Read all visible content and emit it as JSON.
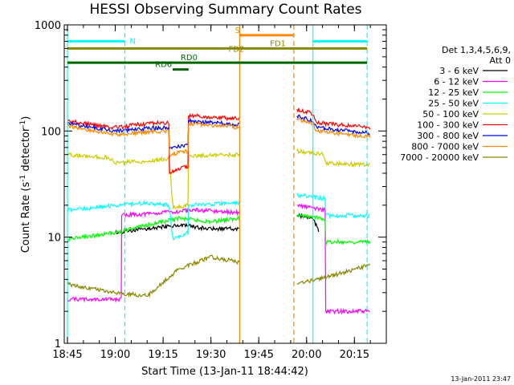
{
  "chart_data": {
    "type": "line",
    "title": "HESSI Observing Summary Count Rates",
    "xlabel": "Start Time (13-Jan-11 18:44:42)",
    "ylabel_main": "Count Rate (s",
    "ylabel_sup1": "-1",
    "ylabel_mid": " detector",
    "ylabel_sup2": "-1",
    "ylabel_end": ")",
    "y_scale": "log",
    "ylim": [
      1,
      1000
    ],
    "xlim": [
      "18:44",
      "20:25"
    ],
    "x_ticks": [
      {
        "t": "18:45",
        "label": "18:45"
      },
      {
        "t": "19:00",
        "label": "19:00"
      },
      {
        "t": "19:15",
        "label": "19:15"
      },
      {
        "t": "19:30",
        "label": "19:30"
      },
      {
        "t": "19:45",
        "label": "19:45"
      },
      {
        "t": "20:00",
        "label": "20:00"
      },
      {
        "t": "20:15",
        "label": "20:15"
      }
    ],
    "y_ticks": [
      {
        "v": 1,
        "label": "1"
      },
      {
        "v": 10,
        "label": "10"
      },
      {
        "v": 100,
        "label": "100"
      },
      {
        "v": 1000,
        "label": "1000"
      }
    ],
    "legend_header": [
      "Det 1,3,4,5,6,9,",
      "Att 0"
    ],
    "legend_position": "right",
    "timestamp": "13-Jan-2011 23:47",
    "series": [
      {
        "name": "3 - 6 keV",
        "color": "#000000",
        "segments": [
          [
            [
              "19:00",
              11
            ],
            [
              "19:10",
              12
            ],
            [
              "19:20",
              13
            ],
            [
              "19:29",
              12
            ],
            [
              "19:39",
              12
            ]
          ],
          [
            [
              "19:57",
              16
            ],
            [
              "20:02",
              15
            ],
            [
              "20:04",
              11
            ]
          ]
        ]
      },
      {
        "name": "6 - 12 keV",
        "color": "#ff00ff",
        "segments": [
          [
            [
              "18:45",
              2.6
            ],
            [
              "19:02",
              2.6
            ],
            [
              "19:02",
              16
            ],
            [
              "19:15",
              17
            ],
            [
              "19:25",
              18
            ],
            [
              "19:39",
              17
            ]
          ],
          [
            [
              "19:57",
              20
            ],
            [
              "20:06",
              18
            ],
            [
              "20:06",
              2.0
            ],
            [
              "20:20",
              2.0
            ]
          ]
        ]
      },
      {
        "name": "12 - 25 keV",
        "color": "#00ff00",
        "segments": [
          [
            [
              "18:45",
              9.5
            ],
            [
              "19:00",
              11
            ],
            [
              "19:10",
              13
            ],
            [
              "19:20",
              15
            ],
            [
              "19:30",
              14
            ],
            [
              "19:39",
              15
            ]
          ],
          [
            [
              "19:57",
              16
            ],
            [
              "20:06",
              15
            ],
            [
              "20:06",
              9
            ],
            [
              "20:20",
              9
            ]
          ]
        ]
      },
      {
        "name": "25 - 50 keV",
        "color": "#00ffff",
        "segments": [
          [
            [
              "18:45",
              18
            ],
            [
              "19:00",
              20
            ],
            [
              "19:10",
              21
            ],
            [
              "19:17",
              20
            ],
            [
              "19:18",
              9.5
            ],
            [
              "19:23",
              11
            ],
            [
              "19:23",
              20
            ],
            [
              "19:39",
              21
            ]
          ],
          [
            [
              "19:57",
              25
            ],
            [
              "20:06",
              23
            ],
            [
              "20:06",
              16
            ],
            [
              "20:20",
              16
            ]
          ]
        ]
      },
      {
        "name": "50 - 100 keV",
        "color": "#cccc00",
        "segments": [
          [
            [
              "18:45",
              60
            ],
            [
              "18:58",
              56
            ],
            [
              "19:00",
              50
            ],
            [
              "19:10",
              52
            ],
            [
              "19:17",
              55
            ],
            [
              "19:18",
              19
            ],
            [
              "19:23",
              20
            ],
            [
              "19:23",
              58
            ],
            [
              "19:39",
              60
            ]
          ],
          [
            [
              "19:57",
              65
            ],
            [
              "20:05",
              60
            ],
            [
              "20:06",
              50
            ],
            [
              "20:20",
              48
            ]
          ]
        ]
      },
      {
        "name": "100 - 300 keV",
        "color": "#ff0000",
        "segments": [
          [
            [
              "18:45",
              125
            ],
            [
              "18:55",
              112
            ],
            [
              "19:00",
              108
            ],
            [
              "19:10",
              118
            ],
            [
              "19:17",
              120
            ],
            [
              "19:17",
              40
            ],
            [
              "19:23",
              47
            ],
            [
              "19:23",
              140
            ],
            [
              "19:39",
              130
            ]
          ],
          [
            [
              "19:57",
              160
            ],
            [
              "20:02",
              145
            ],
            [
              "20:03",
              120
            ],
            [
              "20:20",
              108
            ]
          ]
        ]
      },
      {
        "name": "300 - 800 keV",
        "color": "#0000ff",
        "segments": [
          [
            [
              "18:45",
              118
            ],
            [
              "18:55",
              105
            ],
            [
              "19:00",
              100
            ],
            [
              "19:10",
              106
            ],
            [
              "19:17",
              108
            ],
            [
              "19:17",
              68
            ],
            [
              "19:23",
              75
            ],
            [
              "19:23",
              125
            ],
            [
              "19:39",
              115
            ]
          ],
          [
            [
              "19:57",
              138
            ],
            [
              "20:02",
              125
            ],
            [
              "20:03",
              108
            ],
            [
              "20:20",
              95
            ]
          ]
        ]
      },
      {
        "name": "800 - 7000 keV",
        "color": "#ff8800",
        "segments": [
          [
            [
              "18:45",
              112
            ],
            [
              "18:55",
              98
            ],
            [
              "19:00",
              92
            ],
            [
              "19:10",
              98
            ],
            [
              "19:17",
              100
            ],
            [
              "19:17",
              60
            ],
            [
              "19:23",
              65
            ],
            [
              "19:23",
              118
            ],
            [
              "19:39",
              108
            ]
          ],
          [
            [
              "19:57",
              130
            ],
            [
              "20:02",
              118
            ],
            [
              "20:03",
              100
            ],
            [
              "20:20",
              88
            ]
          ]
        ]
      },
      {
        "name": "7000 - 20000 keV",
        "color": "#888800",
        "segments": [
          [
            [
              "18:45",
              3.6
            ],
            [
              "19:00",
              3.0
            ],
            [
              "19:10",
              2.8
            ],
            [
              "19:20",
              5.0
            ],
            [
              "19:30",
              6.5
            ],
            [
              "19:39",
              5.8
            ]
          ],
          [
            [
              "19:57",
              3.6
            ],
            [
              "20:10",
              4.5
            ],
            [
              "20:20",
              5.5
            ]
          ]
        ]
      }
    ],
    "vertical_markers": [
      {
        "t": "18:45",
        "color": "#00ffff",
        "style": "solid"
      },
      {
        "t": "19:03",
        "color": "#00ffff",
        "style": "dashed"
      },
      {
        "t": "20:02",
        "color": "#00ffff",
        "style": "solid"
      },
      {
        "t": "20:19",
        "color": "#00ffff",
        "style": "dashed"
      },
      {
        "t": "19:39",
        "color": "#ff8800",
        "style": "solid"
      },
      {
        "t": "19:56",
        "color": "#ff8800",
        "style": "dashed"
      }
    ],
    "flag_bars": [
      {
        "label": "N",
        "color": "#00ffff",
        "y": 700,
        "segments": [
          [
            "18:45",
            "19:03"
          ],
          [
            "20:02",
            "20:19"
          ]
        ]
      },
      {
        "label": "S",
        "color": "#ff8800",
        "y": 800,
        "segments": [
          [
            "19:39",
            "19:56"
          ]
        ]
      },
      {
        "label": "FD1",
        "color": "#888800",
        "y": 600,
        "segments": [
          [
            "18:45",
            "20:19"
          ]
        ]
      },
      {
        "label": "FD2",
        "color": "#888800",
        "y": 530,
        "segments": []
      },
      {
        "label": "RD0",
        "color": "#006600",
        "y": 440,
        "segments": [
          [
            "18:45",
            "20:19"
          ]
        ]
      },
      {
        "label": "RD6",
        "color": "#006600",
        "y": 380,
        "segments": [
          [
            "19:18",
            "19:23"
          ]
        ]
      }
    ]
  }
}
